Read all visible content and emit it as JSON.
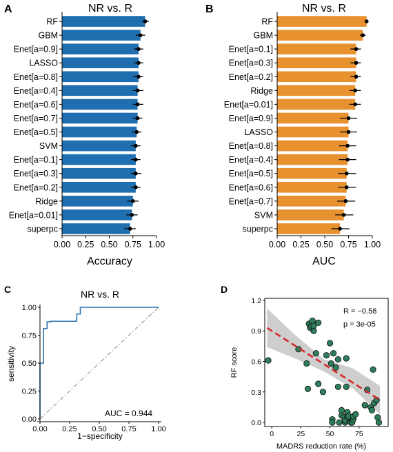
{
  "colors": {
    "accuracy_bar": "#1f6fb0",
    "auc_bar": "#e8912f",
    "roc_line": "#2a73b0",
    "diag_line": "#9a9a9a",
    "scatter_fill": "#2e7d5b",
    "fit_line": "#d62a2a",
    "ci_band": "#bdbdbd"
  },
  "panels": {
    "A": {
      "letter": "A"
    },
    "B": {
      "letter": "B"
    },
    "C": {
      "letter": "C"
    },
    "D": {
      "letter": "D"
    }
  },
  "chart_data": [
    {
      "panel": "A",
      "type": "bar",
      "orientation": "horizontal",
      "title": "NR vs. R",
      "xlabel": "Accuracy",
      "ylabel": "",
      "xlim": [
        0,
        1
      ],
      "xticks": [
        "0.00",
        "0.25",
        "0.50",
        "0.75",
        "1.00"
      ],
      "categories": [
        "RF",
        "GBM",
        "Enet[a=0.9]",
        "LASSO",
        "Enet[a=0.8]",
        "Enet[a=0.4]",
        "Enet[a=0.6]",
        "Enet[a=0.7]",
        "Enet[a=0.5]",
        "SVM",
        "Enet[a=0.1]",
        "Enet[a=0.3]",
        "Enet[a=0.2]",
        "Ridge",
        "Enet[a=0.01]",
        "superpc"
      ],
      "values": [
        0.88,
        0.83,
        0.81,
        0.81,
        0.81,
        0.8,
        0.8,
        0.8,
        0.79,
        0.78,
        0.78,
        0.78,
        0.78,
        0.75,
        0.74,
        0.72
      ],
      "error_low": [
        0.85,
        0.78,
        0.76,
        0.76,
        0.75,
        0.75,
        0.75,
        0.75,
        0.74,
        0.73,
        0.73,
        0.73,
        0.73,
        0.69,
        0.68,
        0.66
      ],
      "error_high": [
        0.92,
        0.88,
        0.86,
        0.86,
        0.86,
        0.86,
        0.86,
        0.85,
        0.84,
        0.83,
        0.83,
        0.84,
        0.83,
        0.81,
        0.8,
        0.78
      ]
    },
    {
      "panel": "B",
      "type": "bar",
      "orientation": "horizontal",
      "title": "NR vs. R",
      "xlabel": "AUC",
      "ylabel": "",
      "xlim": [
        0,
        1
      ],
      "xticks": [
        "0.00",
        "0.25",
        "0.50",
        "0.75",
        "1.00"
      ],
      "categories": [
        "RF",
        "GBM",
        "Enet[a=0.1]",
        "Enet[a=0.3]",
        "Enet[a=0.2]",
        "Ridge",
        "Enet[a=0.01]",
        "Enet[a=0.9]",
        "LASSO",
        "Enet[a=0.8]",
        "Enet[a=0.4]",
        "Enet[a=0.5]",
        "Enet[a=0.6]",
        "Enet[a=0.7]",
        "SVM",
        "superpc"
      ],
      "values": [
        0.94,
        0.9,
        0.83,
        0.83,
        0.83,
        0.82,
        0.82,
        0.75,
        0.75,
        0.74,
        0.74,
        0.73,
        0.73,
        0.72,
        0.7,
        0.66
      ],
      "error_low": [
        0.92,
        0.87,
        0.77,
        0.77,
        0.77,
        0.76,
        0.76,
        0.66,
        0.66,
        0.65,
        0.65,
        0.64,
        0.64,
        0.63,
        0.61,
        0.57
      ],
      "error_high": [
        0.96,
        0.93,
        0.88,
        0.88,
        0.88,
        0.88,
        0.88,
        0.84,
        0.84,
        0.83,
        0.83,
        0.83,
        0.83,
        0.82,
        0.8,
        0.76
      ]
    },
    {
      "panel": "C",
      "type": "line",
      "title": "NR vs. R",
      "xlabel": "1−specificity",
      "ylabel": "sensitivity",
      "xlim": [
        0,
        1
      ],
      "ylim": [
        0,
        1
      ],
      "xticks": [
        "0.00",
        "0.25",
        "0.50",
        "0.75",
        "1.00"
      ],
      "yticks": [
        "0.00",
        "0.25",
        "0.50",
        "0.75",
        "1.00"
      ],
      "annotation": "AUC =  0.944",
      "roc": {
        "x": [
          0,
          0,
          0.03,
          0.03,
          0.06,
          0.06,
          0.09,
          0.09,
          0.28,
          0.28,
          0.31,
          0.31,
          0.34,
          0.34,
          1.0
        ],
        "y": [
          0,
          0.5,
          0.5,
          0.81,
          0.81,
          0.87,
          0.87,
          0.875,
          0.875,
          0.875,
          0.875,
          0.94,
          0.94,
          1.0,
          1.0
        ]
      },
      "diagonal": {
        "x": [
          0,
          1
        ],
        "y": [
          0,
          1
        ]
      }
    },
    {
      "panel": "D",
      "type": "scatter",
      "title": "",
      "xlabel": "MADRS reduction rate (%)",
      "ylabel": "RF score",
      "xlim": [
        -6,
        100
      ],
      "ylim": [
        -0.04,
        1.22
      ],
      "xticks": [
        0,
        25,
        50,
        75
      ],
      "yticks": [
        "0.0",
        "0.3",
        "0.6",
        "0.9",
        "1.2"
      ],
      "annotations": [
        "R = −0.58",
        "p = 3e-05"
      ],
      "fit": {
        "x": [
          -4,
          93
        ],
        "y": [
          0.93,
          0.22
        ]
      },
      "ci_band": {
        "x": [
          -4,
          20,
          45,
          70,
          93
        ],
        "lower": [
          0.74,
          0.63,
          0.5,
          0.33,
          0.08
        ],
        "upper": [
          1.12,
          0.86,
          0.62,
          0.53,
          0.36
        ]
      },
      "points": {
        "x": [
          -3,
          23,
          30,
          31,
          32,
          33,
          34,
          35,
          36,
          38,
          40,
          36,
          40,
          44,
          47,
          50,
          51,
          52,
          52,
          53,
          55,
          57,
          57,
          58,
          60,
          60,
          62,
          63,
          63,
          64,
          64,
          65,
          65,
          66,
          68,
          69,
          70,
          70,
          72,
          80,
          82,
          85,
          86,
          87,
          88,
          90,
          91,
          92
        ],
        "y": [
          0.61,
          0.72,
          0.58,
          0.33,
          0.97,
          0.93,
          0.95,
          1.0,
          0.9,
          0.68,
          0.38,
          0.95,
          0.98,
          0.3,
          0.66,
          0.78,
          0.58,
          0.03,
          0.0,
          0.68,
          0.54,
          0.35,
          0.62,
          0.0,
          0.07,
          0.12,
          0.05,
          0.0,
          0.02,
          0.35,
          0.63,
          0.05,
          0.1,
          0.06,
          0.0,
          0.0,
          0.03,
          0.06,
          0.08,
          0.17,
          0.32,
          0.15,
          0.12,
          0.52,
          0.19,
          0.22,
          0.05,
          0.0
        ]
      }
    }
  ]
}
